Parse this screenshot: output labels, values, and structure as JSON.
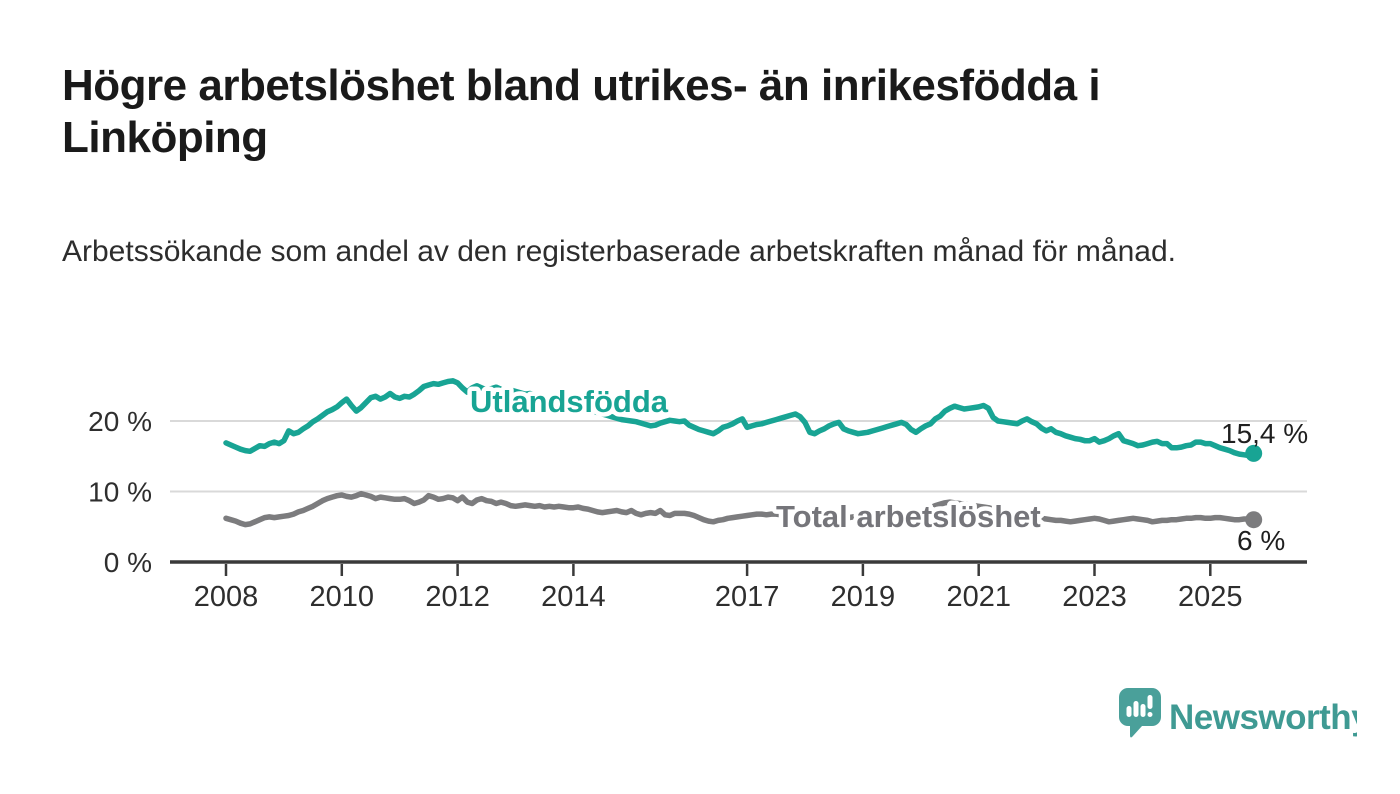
{
  "header": {
    "title": "Högre arbetslöshet bland utrikes- än inrikesfödda i Linköping",
    "subtitle": "Arbetssökande som andel av den registerbaserade arbetskraften månad för månad."
  },
  "chart_data": {
    "type": "line",
    "unit": "%",
    "x_start": "2008-01",
    "x_end": "2025-10",
    "x_frequency": "monthly",
    "x_tick_labels": [
      "2008",
      "2010",
      "2012",
      "2014",
      "2017",
      "2019",
      "2021",
      "2023",
      "2025"
    ],
    "y_tick_labels": [
      "20 %",
      "10 %",
      "0 %"
    ],
    "y_tick_values": [
      20,
      10,
      0
    ],
    "ylim": [
      0,
      27
    ],
    "grid": "horizontal",
    "series": [
      {
        "name": "Utlandsfödda",
        "color": "#18a494",
        "end_label": "15,4 %",
        "end_value": 15.4,
        "values": [
          16.9,
          16.6,
          16.3,
          16.0,
          15.8,
          15.7,
          16.1,
          16.5,
          16.4,
          16.8,
          17.0,
          16.8,
          17.2,
          18.6,
          18.2,
          18.4,
          18.9,
          19.3,
          19.9,
          20.3,
          20.8,
          21.3,
          21.6,
          22.0,
          22.6,
          23.1,
          22.2,
          21.4,
          21.9,
          22.6,
          23.3,
          23.5,
          23.1,
          23.4,
          23.9,
          23.4,
          23.2,
          23.5,
          23.4,
          23.8,
          24.3,
          24.9,
          25.1,
          25.3,
          25.2,
          25.4,
          25.6,
          25.7,
          25.4,
          24.7,
          24.1,
          24.7,
          25.0,
          24.7,
          24.4,
          24.6,
          24.8,
          24.5,
          24.3,
          24.4,
          24.2,
          24.0,
          23.8,
          23.9,
          23.7,
          23.5,
          23.4,
          23.2,
          23.0,
          22.8,
          22.6,
          22.4,
          22.2,
          22.0,
          21.8,
          21.6,
          21.4,
          21.2,
          21.0,
          20.8,
          20.6,
          20.4,
          20.2,
          20.1,
          20.0,
          19.9,
          19.7,
          19.5,
          19.3,
          19.4,
          19.7,
          19.9,
          20.1,
          20.0,
          19.9,
          20.0,
          19.4,
          19.1,
          18.8,
          18.6,
          18.4,
          18.2,
          18.6,
          19.1,
          19.3,
          19.6,
          20.0,
          20.3,
          19.1,
          19.3,
          19.5,
          19.6,
          19.8,
          20.0,
          20.2,
          20.4,
          20.6,
          20.8,
          21.0,
          20.6,
          19.8,
          18.4,
          18.2,
          18.6,
          18.9,
          19.3,
          19.6,
          19.8,
          18.9,
          18.6,
          18.4,
          18.2,
          18.3,
          18.4,
          18.6,
          18.8,
          19.0,
          19.2,
          19.4,
          19.6,
          19.8,
          19.5,
          18.8,
          18.4,
          18.9,
          19.3,
          19.6,
          20.3,
          20.7,
          21.4,
          21.8,
          22.1,
          21.9,
          21.7,
          21.8,
          21.9,
          22.0,
          22.2,
          21.8,
          20.5,
          20.0,
          19.9,
          19.8,
          19.7,
          19.6,
          20.0,
          20.3,
          19.9,
          19.6,
          19.0,
          18.6,
          18.9,
          18.4,
          18.2,
          17.9,
          17.7,
          17.5,
          17.4,
          17.2,
          17.2,
          17.5,
          17.0,
          17.2,
          17.5,
          17.9,
          18.2,
          17.2,
          17.0,
          16.8,
          16.5,
          16.6,
          16.8,
          17.0,
          17.1,
          16.8,
          16.8,
          16.2,
          16.2,
          16.3,
          16.5,
          16.6,
          17.0,
          17.0,
          16.8,
          16.8,
          16.5,
          16.2,
          16.0,
          15.8,
          15.5,
          15.3,
          15.2,
          15.1,
          15.4
        ]
      },
      {
        "name": "Total arbetslöshet",
        "color": "#7c7c7e",
        "end_label": "6 %",
        "end_value": 6.0,
        "values": [
          6.2,
          6.0,
          5.8,
          5.5,
          5.3,
          5.4,
          5.7,
          6.0,
          6.3,
          6.4,
          6.3,
          6.4,
          6.5,
          6.6,
          6.8,
          7.1,
          7.3,
          7.6,
          7.9,
          8.3,
          8.7,
          9.0,
          9.2,
          9.4,
          9.5,
          9.3,
          9.2,
          9.4,
          9.7,
          9.5,
          9.3,
          9.0,
          9.2,
          9.1,
          9.0,
          8.9,
          8.9,
          9.0,
          8.7,
          8.3,
          8.5,
          8.8,
          9.4,
          9.2,
          8.9,
          9.0,
          9.2,
          9.1,
          8.7,
          9.2,
          8.5,
          8.3,
          8.8,
          9.0,
          8.7,
          8.6,
          8.3,
          8.5,
          8.3,
          8.0,
          7.9,
          8.0,
          8.1,
          8.0,
          7.9,
          8.0,
          7.8,
          7.9,
          7.8,
          7.9,
          7.8,
          7.7,
          7.7,
          7.8,
          7.6,
          7.5,
          7.3,
          7.1,
          7.0,
          7.1,
          7.2,
          7.3,
          7.1,
          7.0,
          7.3,
          6.9,
          6.7,
          6.9,
          7.0,
          6.9,
          7.3,
          6.7,
          6.6,
          6.9,
          6.9,
          6.9,
          6.8,
          6.6,
          6.3,
          6.0,
          5.8,
          5.7,
          5.9,
          6.0,
          6.2,
          6.3,
          6.4,
          6.5,
          6.6,
          6.7,
          6.8,
          6.8,
          6.7,
          6.8,
          6.8,
          6.7,
          6.8,
          6.7,
          6.6,
          6.7,
          6.6,
          6.5,
          6.4,
          6.5,
          6.6,
          6.5,
          6.4,
          6.5,
          6.4,
          6.3,
          6.4,
          6.5,
          6.4,
          6.5,
          6.6,
          6.5,
          6.6,
          6.7,
          6.8,
          6.7,
          6.8,
          6.9,
          7.0,
          7.1,
          7.2,
          7.4,
          7.7,
          8.0,
          8.2,
          8.4,
          8.5,
          8.4,
          8.3,
          8.2,
          8.1,
          8.0,
          7.9,
          7.8,
          7.7,
          7.5,
          7.3,
          7.1,
          7.0,
          6.9,
          6.8,
          6.7,
          6.6,
          6.5,
          6.3,
          6.2,
          6.1,
          6.0,
          5.9,
          5.9,
          5.8,
          5.7,
          5.8,
          5.9,
          6.0,
          6.1,
          6.2,
          6.1,
          5.9,
          5.7,
          5.8,
          5.9,
          6.0,
          6.1,
          6.2,
          6.1,
          6.0,
          5.9,
          5.7,
          5.8,
          5.9,
          5.9,
          6.0,
          6.0,
          6.1,
          6.2,
          6.2,
          6.3,
          6.3,
          6.2,
          6.2,
          6.3,
          6.3,
          6.2,
          6.1,
          6.0,
          6.0,
          6.1,
          6.1,
          6.0
        ]
      }
    ],
    "colors": {
      "grid": "#d9d9d9",
      "axis": "#3a3a3a",
      "tick_label": "#2e2e2e",
      "end_label": "#1f1f1f"
    }
  },
  "footer": {
    "brand": "Newsworthy",
    "logo_icon": "chart-speech-bubble-icon",
    "brand_color": "#3f9a93",
    "icon_color": "#4aa09a"
  }
}
